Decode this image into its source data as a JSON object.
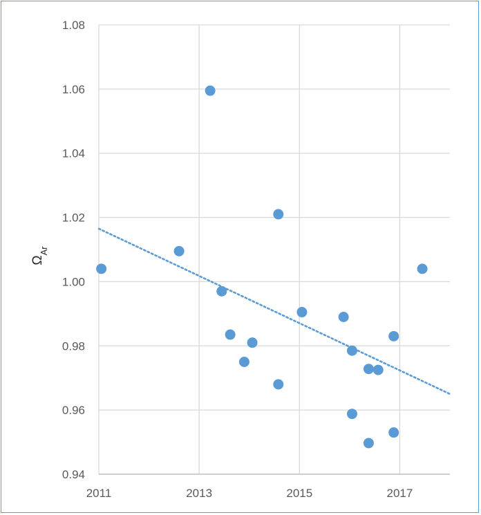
{
  "chart_data": {
    "type": "scatter",
    "title": "",
    "xlabel": "",
    "ylabel": "Ω",
    "ylabel_sub": "Ar",
    "xlim": [
      2011,
      2018
    ],
    "ylim": [
      0.94,
      1.08
    ],
    "x_ticks": [
      "2011",
      "2013",
      "2015",
      "2017"
    ],
    "y_ticks": [
      "0.94",
      "0.96",
      "0.98",
      "1.00",
      "1.02",
      "1.04",
      "1.06",
      "1.08"
    ],
    "grid": true,
    "legend": "none",
    "series": [
      {
        "points": [
          [
            2011.05,
            1.004
          ],
          [
            2012.6,
            1.0095
          ],
          [
            2013.22,
            1.0595
          ],
          [
            2013.45,
            0.997
          ],
          [
            2013.62,
            0.9835
          ],
          [
            2013.9,
            0.975
          ],
          [
            2014.06,
            0.981
          ],
          [
            2014.58,
            1.021
          ],
          [
            2014.58,
            0.968
          ],
          [
            2015.05,
            0.9905
          ],
          [
            2015.88,
            0.989
          ],
          [
            2016.05,
            0.9785
          ],
          [
            2016.05,
            0.9588
          ],
          [
            2016.38,
            0.9728
          ],
          [
            2016.38,
            0.9497
          ],
          [
            2016.57,
            0.9725
          ],
          [
            2016.88,
            0.983
          ],
          [
            2016.88,
            0.953
          ],
          [
            2017.45,
            1.004
          ]
        ]
      }
    ],
    "trendline": {
      "x": [
        2011.0,
        2018.0
      ],
      "y": [
        1.0165,
        0.965
      ],
      "style": "dotted"
    },
    "colors": {
      "points": "#5b9bd5",
      "trend": "#5b9bd5",
      "grid": "#d9d9d9",
      "frame": "#5b9bd5"
    }
  }
}
